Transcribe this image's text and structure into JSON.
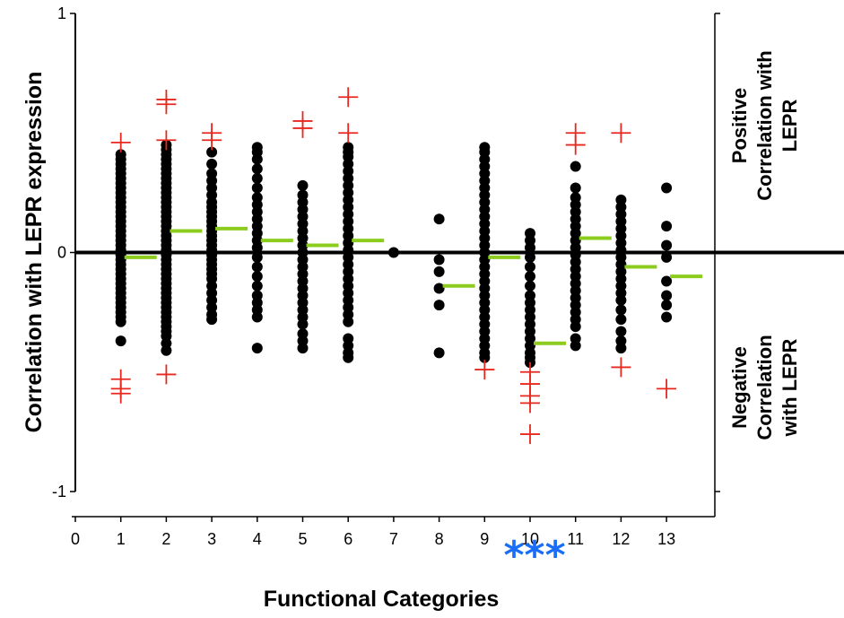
{
  "chart_data": {
    "type": "scatter",
    "xlabel": "Functional Categories",
    "ylabel": "Correlation with LEPR expression",
    "xlim": [
      0,
      14
    ],
    "ylim": [
      -1,
      1
    ],
    "x_ticks": [
      "0",
      "1",
      "2",
      "3",
      "4",
      "5",
      "6",
      "7",
      "8",
      "9",
      "10",
      "11",
      "12",
      "13"
    ],
    "y_ticks": [
      "1",
      "0",
      "-1"
    ],
    "positive_label": [
      "Positive",
      "Correlation with",
      "LEPR"
    ],
    "negative_label": [
      "Negative",
      "Correlation",
      "with LEPR"
    ],
    "significance": {
      "category": 10.1,
      "text": "***",
      "color": "#1a6ef5"
    },
    "colors": {
      "points": "#000000",
      "outliers": "#e8281e",
      "median": "#8ccc1e",
      "zero_line": "#000000"
    },
    "categories": [
      {
        "x": 1,
        "median": -0.02,
        "points": [
          0.41,
          0.39,
          0.37,
          0.35,
          0.33,
          0.31,
          0.29,
          0.27,
          0.25,
          0.23,
          0.21,
          0.19,
          0.17,
          0.15,
          0.13,
          0.11,
          0.09,
          0.07,
          0.05,
          0.03,
          0.01,
          -0.01,
          -0.03,
          -0.05,
          -0.07,
          -0.09,
          -0.11,
          -0.13,
          -0.15,
          -0.17,
          -0.19,
          -0.21,
          -0.23,
          -0.25,
          -0.27,
          -0.29,
          -0.37
        ],
        "outliers": [
          0.46,
          -0.53,
          -0.57,
          -0.59
        ]
      },
      {
        "x": 2,
        "median": 0.09,
        "points": [
          0.45,
          0.43,
          0.41,
          0.39,
          0.37,
          0.35,
          0.33,
          0.31,
          0.29,
          0.27,
          0.25,
          0.23,
          0.21,
          0.19,
          0.17,
          0.15,
          0.13,
          0.11,
          0.09,
          0.07,
          0.05,
          0.03,
          0.01,
          -0.01,
          -0.03,
          -0.05,
          -0.07,
          -0.09,
          -0.11,
          -0.13,
          -0.15,
          -0.17,
          -0.19,
          -0.21,
          -0.23,
          -0.25,
          -0.27,
          -0.29,
          -0.31,
          -0.33,
          -0.35,
          -0.38,
          -0.41
        ],
        "outliers": [
          0.64,
          0.62,
          0.47,
          -0.51
        ]
      },
      {
        "x": 3,
        "median": 0.1,
        "points": [
          0.42,
          0.37,
          0.33,
          0.3,
          0.27,
          0.24,
          0.21,
          0.19,
          0.17,
          0.15,
          0.13,
          0.11,
          0.09,
          0.07,
          0.05,
          0.03,
          0.01,
          -0.01,
          -0.03,
          -0.05,
          -0.07,
          -0.09,
          -0.11,
          -0.14,
          -0.17,
          -0.2,
          -0.23,
          -0.26,
          -0.28
        ],
        "outliers": [
          0.5,
          0.47
        ]
      },
      {
        "x": 4,
        "median": 0.05,
        "points": [
          0.44,
          0.42,
          0.39,
          0.35,
          0.31,
          0.27,
          0.23,
          0.2,
          0.17,
          0.14,
          0.11,
          0.08,
          0.05,
          0.02,
          -0.02,
          -0.06,
          -0.1,
          -0.14,
          -0.18,
          -0.21,
          -0.24,
          -0.27,
          -0.4
        ]
      },
      {
        "x": 5,
        "median": 0.03,
        "points": [
          0.28,
          0.24,
          0.21,
          0.18,
          0.15,
          0.12,
          0.09,
          0.06,
          0.03,
          0.0,
          -0.03,
          -0.06,
          -0.09,
          -0.12,
          -0.15,
          -0.18,
          -0.21,
          -0.24,
          -0.27,
          -0.3,
          -0.34,
          -0.37,
          -0.4
        ],
        "outliers": [
          0.55,
          0.52
        ]
      },
      {
        "x": 6,
        "median": 0.05,
        "points": [
          0.44,
          0.42,
          0.4,
          0.37,
          0.34,
          0.31,
          0.28,
          0.25,
          0.22,
          0.19,
          0.16,
          0.13,
          0.1,
          0.07,
          0.04,
          0.01,
          -0.02,
          -0.05,
          -0.08,
          -0.11,
          -0.14,
          -0.17,
          -0.2,
          -0.23,
          -0.26,
          -0.29,
          -0.36,
          -0.39,
          -0.42,
          -0.44
        ],
        "outliers": [
          0.65,
          0.5
        ]
      },
      {
        "x": 7,
        "points": [
          0.0
        ]
      },
      {
        "x": 8,
        "median": -0.14,
        "points": [
          0.14,
          -0.03,
          -0.08,
          -0.15,
          -0.22,
          -0.42
        ]
      },
      {
        "x": 9,
        "median": -0.02,
        "points": [
          0.44,
          0.42,
          0.39,
          0.36,
          0.33,
          0.3,
          0.27,
          0.24,
          0.21,
          0.18,
          0.15,
          0.12,
          0.09,
          0.06,
          0.03,
          0.0,
          -0.03,
          -0.06,
          -0.09,
          -0.12,
          -0.15,
          -0.18,
          -0.21,
          -0.24,
          -0.27,
          -0.3,
          -0.33,
          -0.36,
          -0.39,
          -0.42,
          -0.44
        ],
        "outliers": [
          -0.49
        ]
      },
      {
        "x": 10,
        "median": -0.38,
        "points": [
          0.08,
          0.05,
          0.02,
          -0.02,
          -0.06,
          -0.1,
          -0.14,
          -0.18,
          -0.21,
          -0.24,
          -0.27,
          -0.3,
          -0.33,
          -0.36,
          -0.39,
          -0.42,
          -0.44,
          -0.46
        ],
        "outliers": [
          -0.5,
          -0.55,
          -0.6,
          -0.63,
          -0.76
        ]
      },
      {
        "x": 11,
        "median": 0.06,
        "points": [
          0.36,
          0.27,
          0.23,
          0.2,
          0.17,
          0.14,
          0.11,
          0.08,
          0.05,
          0.02,
          -0.01,
          -0.04,
          -0.07,
          -0.1,
          -0.13,
          -0.16,
          -0.19,
          -0.22,
          -0.25,
          -0.28,
          -0.31,
          -0.36,
          -0.39
        ],
        "outliers": [
          0.5,
          0.45
        ]
      },
      {
        "x": 12,
        "median": -0.06,
        "points": [
          0.22,
          0.19,
          0.16,
          0.13,
          0.1,
          0.07,
          0.04,
          0.01,
          -0.02,
          -0.05,
          -0.08,
          -0.11,
          -0.14,
          -0.17,
          -0.2,
          -0.24,
          -0.28,
          -0.33,
          -0.37,
          -0.4
        ],
        "outliers": [
          0.5,
          -0.48
        ]
      },
      {
        "x": 13,
        "median": -0.1,
        "points": [
          0.27,
          0.11,
          0.03,
          -0.02,
          -0.12,
          -0.18,
          -0.22,
          -0.27
        ],
        "outliers": [
          -0.57
        ]
      }
    ]
  }
}
